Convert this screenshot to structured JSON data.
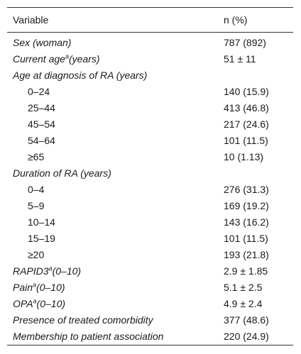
{
  "header": {
    "col1": "Variable",
    "col2": "n (%)"
  },
  "rows": [
    {
      "label": "Sex (woman)",
      "value": "787 (892)"
    },
    {
      "label": "Current age",
      "sup": "a",
      "label_suffix": "(years)",
      "value": "51 ± 11"
    },
    {
      "label": "Age at diagnosis of RA (years)",
      "value": ""
    },
    {
      "label": "0–24",
      "value": "140 (15.9)"
    },
    {
      "label": "25–44",
      "value": "413 (46.8)"
    },
    {
      "label": "45–54",
      "value": "217 (24.6)"
    },
    {
      "label": "54–64",
      "value": "101 (11.5)"
    },
    {
      "label": "≥65",
      "value": "10 (1.13)"
    },
    {
      "label": "Duration of RA (years)",
      "value": ""
    },
    {
      "label": "0–4",
      "value": "276 (31.3)"
    },
    {
      "label": "5–9",
      "value": "169 (19.2)"
    },
    {
      "label": "10–14",
      "value": "143 (16.2)"
    },
    {
      "label": "15–19",
      "value": "101 (11.5)"
    },
    {
      "label": "≥20",
      "value": "193 (21.8)"
    },
    {
      "label": "RAPID3",
      "sup": "a",
      "label_suffix": "(0–10)",
      "value": "2.9 ± 1.85"
    },
    {
      "label": "Pain",
      "sup": "a",
      "label_suffix": "(0–10)",
      "value": "5.1 ± 2.5"
    },
    {
      "label": "OPA",
      "sup": "a",
      "label_suffix": "(0–10)",
      "value": "4.9 ± 2.4"
    },
    {
      "label": "Presence of treated comorbidity",
      "value": "377 (48.6)"
    },
    {
      "label": "Membership to patient association",
      "value": "220 (24.9)"
    }
  ]
}
